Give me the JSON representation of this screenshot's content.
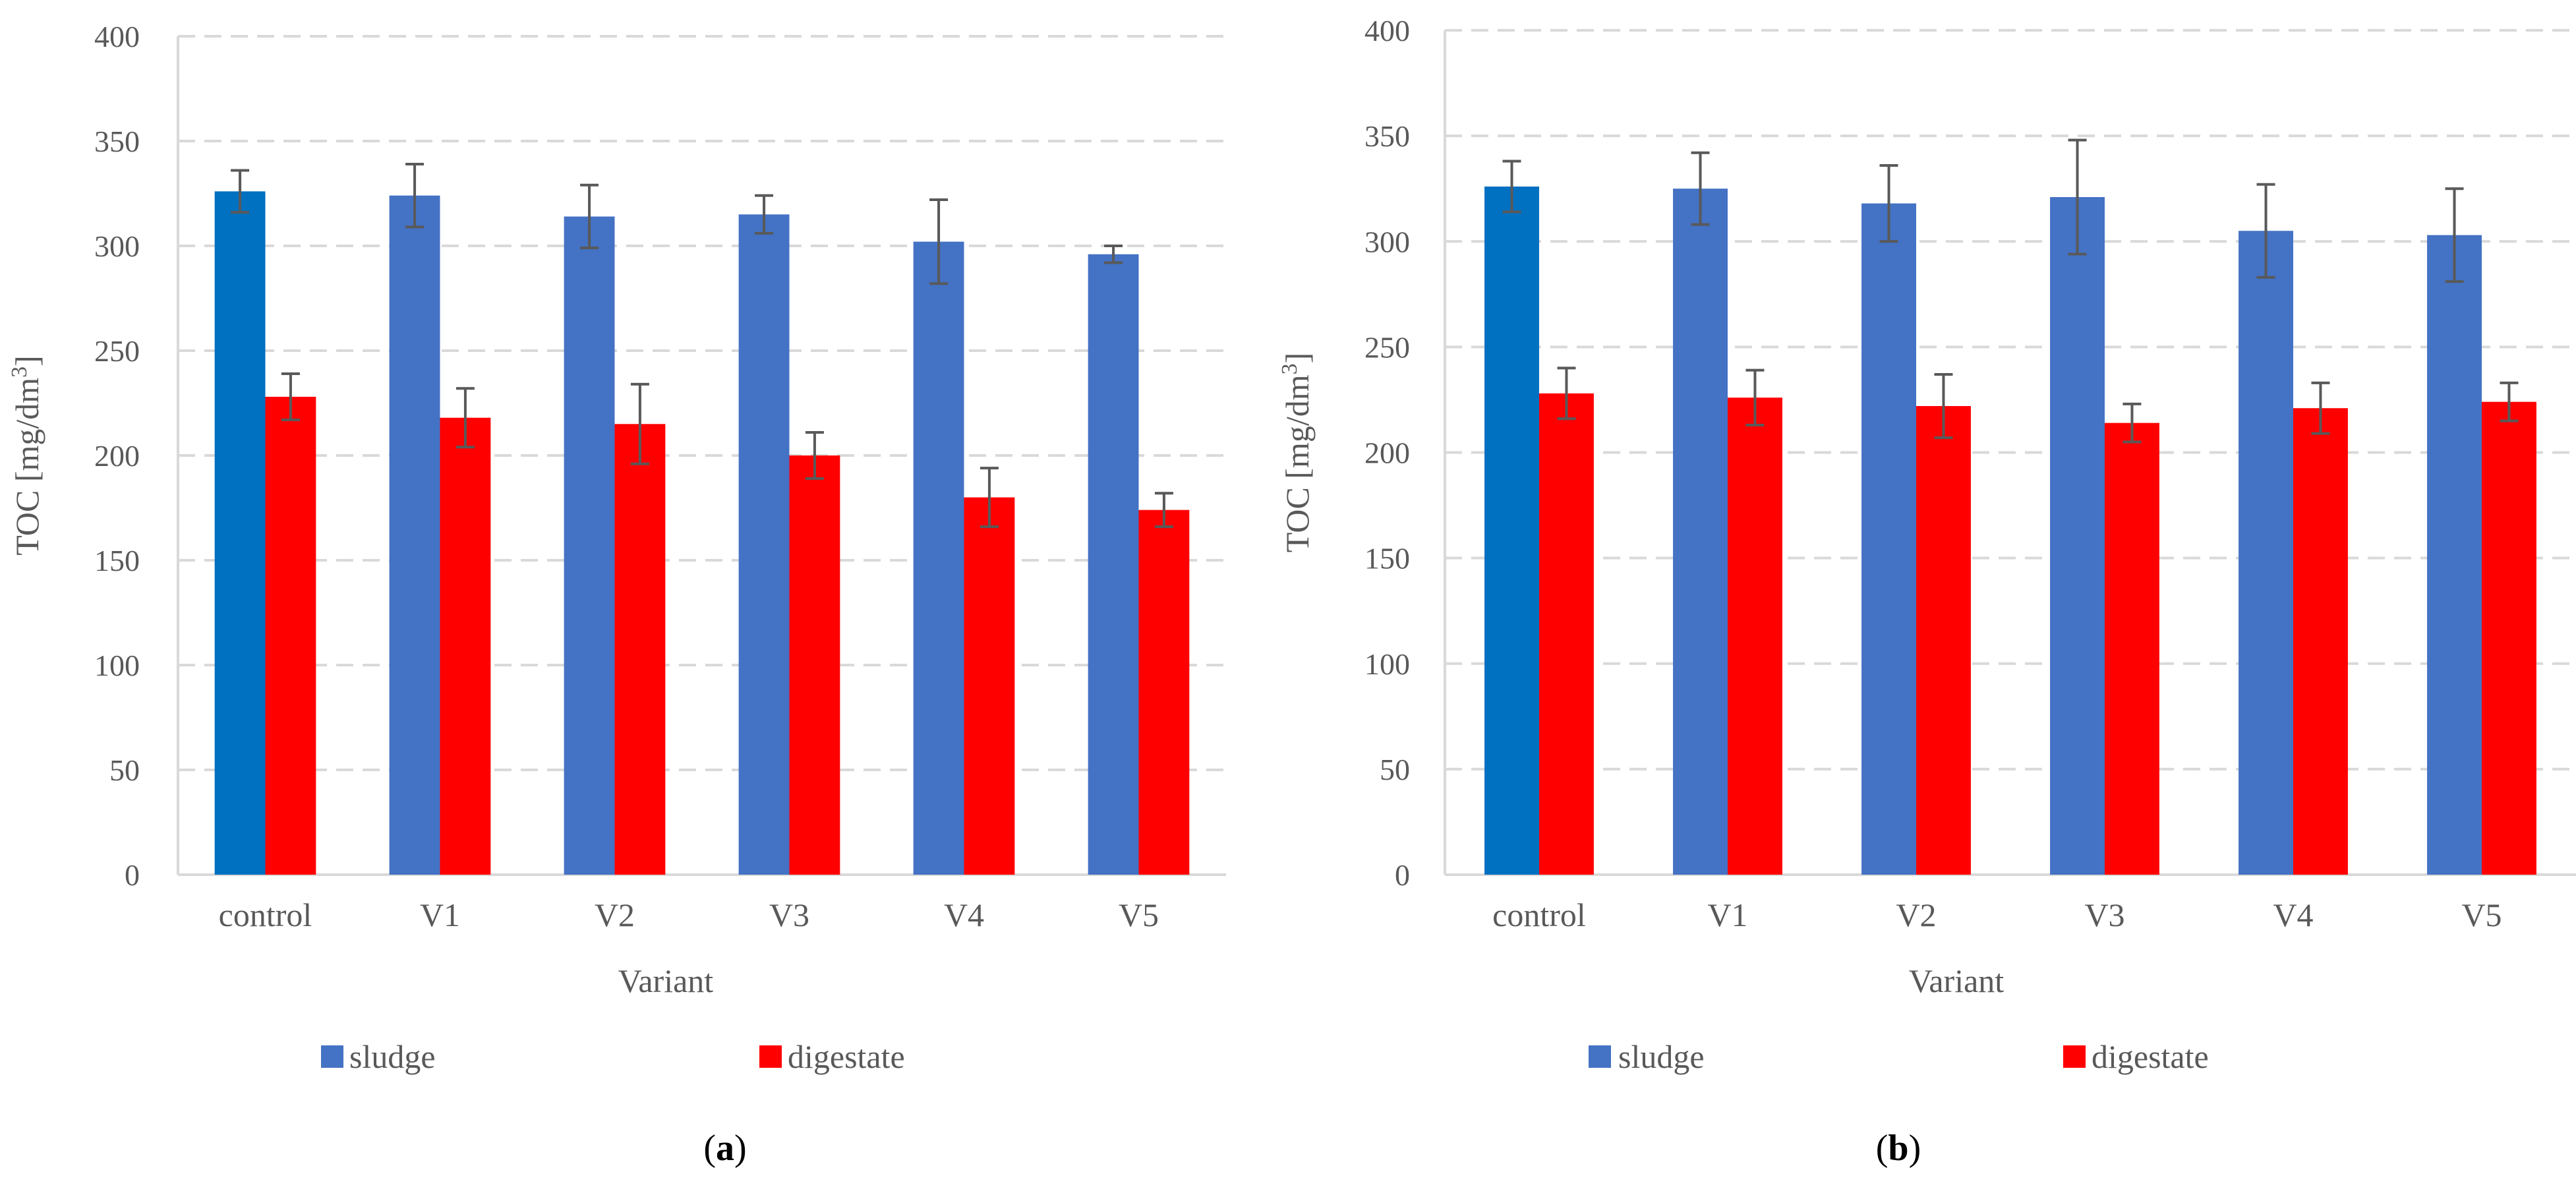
{
  "chart_data": [
    {
      "type": "bar",
      "panel_label": "a",
      "title": "",
      "xlabel": "Variant",
      "ylabel_main": "TOC [mg/dm",
      "ylabel_sup": "3",
      "ylabel_close": "]",
      "ylim": [
        0,
        400
      ],
      "yticks": [
        0,
        50,
        100,
        150,
        200,
        250,
        300,
        350,
        400
      ],
      "grid": true,
      "legend_position": "bottom",
      "categories": [
        "control",
        "V1",
        "V2",
        "V3",
        "V4",
        "V5"
      ],
      "series": [
        {
          "name": "sludge",
          "color": "#4472C4",
          "highlight_first_color": "#0070C0",
          "values": [
            326,
            324,
            314,
            315,
            302,
            296
          ],
          "errors": [
            10,
            15,
            15,
            9,
            20,
            4
          ]
        },
        {
          "name": "digestate",
          "color": "#FF0000",
          "values": [
            228,
            218,
            215,
            200,
            180,
            174
          ],
          "errors": [
            11,
            14,
            19,
            11,
            14,
            8
          ]
        }
      ]
    },
    {
      "type": "bar",
      "panel_label": "b",
      "title": "",
      "xlabel": "Variant",
      "ylabel_main": "TOC [mg/dm",
      "ylabel_sup": "3",
      "ylabel_close": "]",
      "ylim": [
        0,
        400
      ],
      "yticks": [
        0,
        50,
        100,
        150,
        200,
        250,
        300,
        350,
        400
      ],
      "grid": true,
      "legend_position": "bottom",
      "categories": [
        "control",
        "V1",
        "V2",
        "V3",
        "V4",
        "V5"
      ],
      "series": [
        {
          "name": "sludge",
          "color": "#4472C4",
          "highlight_first_color": "#0070C0",
          "values": [
            326,
            325,
            318,
            321,
            305,
            303
          ],
          "errors": [
            12,
            17,
            18,
            27,
            22,
            22
          ]
        },
        {
          "name": "digestate",
          "color": "#FF0000",
          "values": [
            228,
            226,
            222,
            214,
            221,
            224
          ],
          "errors": [
            12,
            13,
            15,
            9,
            12,
            9
          ]
        }
      ]
    }
  ],
  "colors": {
    "grid": "#D9D9D9",
    "axis": "#D9D9D9",
    "text": "#595959",
    "error_bar": "#595959",
    "panel_label": "#000000"
  }
}
